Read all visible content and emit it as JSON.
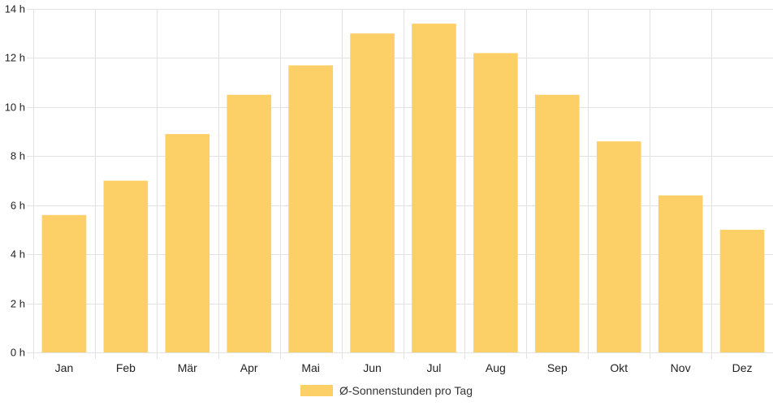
{
  "colors": {
    "bar": "#fdd067",
    "grid": "#e2e2e2",
    "axis_text": "#222222"
  },
  "legend": {
    "label": "Ø-Sonnenstunden pro Tag"
  },
  "chart_data": {
    "type": "bar",
    "categories": [
      "Jan",
      "Feb",
      "Mär",
      "Apr",
      "Mai",
      "Jun",
      "Jul",
      "Aug",
      "Sep",
      "Okt",
      "Nov",
      "Dez"
    ],
    "series": [
      {
        "name": "Ø-Sonnenstunden pro Tag",
        "values": [
          5.6,
          7.0,
          8.9,
          10.5,
          11.7,
          13.0,
          13.4,
          12.2,
          10.5,
          8.6,
          6.4,
          5.0
        ]
      }
    ],
    "y_ticks": [
      "0 h",
      "2 h",
      "4 h",
      "6 h",
      "8 h",
      "10 h",
      "12 h",
      "14 h"
    ],
    "ylim": [
      0,
      14
    ],
    "ytick_step": 2,
    "grid": true,
    "legend_position": "bottom"
  }
}
